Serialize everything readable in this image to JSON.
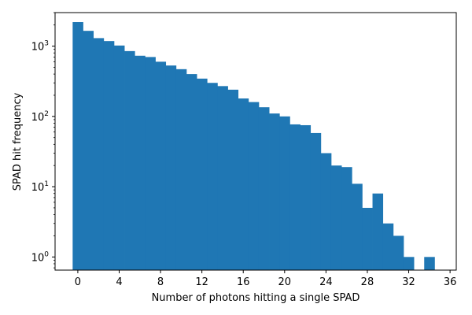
{
  "chart_data": {
    "type": "bar",
    "title": "",
    "xlabel": "Number of photons hitting a single SPAD",
    "ylabel": "SPAD hit frequency",
    "yscale": "log",
    "xlim": [
      -2.2,
      36.6
    ],
    "ylim": [
      0.65,
      3000
    ],
    "grid": false,
    "legend": "none",
    "bar_color": "#1f77b4",
    "bin_width": 1,
    "x": [
      0,
      1,
      2,
      3,
      4,
      5,
      6,
      7,
      8,
      9,
      10,
      11,
      12,
      13,
      14,
      15,
      16,
      17,
      18,
      19,
      20,
      21,
      22,
      23,
      24,
      25,
      26,
      27,
      28,
      29,
      30,
      31,
      32,
      33,
      34
    ],
    "values": [
      2200,
      1650,
      1300,
      1180,
      1020,
      850,
      730,
      700,
      600,
      530,
      470,
      400,
      345,
      300,
      270,
      240,
      180,
      160,
      135,
      110,
      100,
      77,
      75,
      58,
      30,
      20,
      19,
      11,
      5,
      8,
      3,
      2,
      1,
      0,
      1
    ],
    "x_ticks": [
      {
        "value": 0,
        "label": "0"
      },
      {
        "value": 4,
        "label": "4"
      },
      {
        "value": 8,
        "label": "8"
      },
      {
        "value": 12,
        "label": "12"
      },
      {
        "value": 16,
        "label": "16"
      },
      {
        "value": 20,
        "label": "20"
      },
      {
        "value": 24,
        "label": "24"
      },
      {
        "value": 28,
        "label": "28"
      },
      {
        "value": 32,
        "label": "32"
      },
      {
        "value": 36,
        "label": "36"
      }
    ],
    "y_ticks": [
      {
        "value": 1,
        "base": "10",
        "exp": "0"
      },
      {
        "value": 10,
        "base": "10",
        "exp": "1"
      },
      {
        "value": 100,
        "base": "10",
        "exp": "2"
      },
      {
        "value": 1000,
        "base": "10",
        "exp": "3"
      }
    ]
  }
}
